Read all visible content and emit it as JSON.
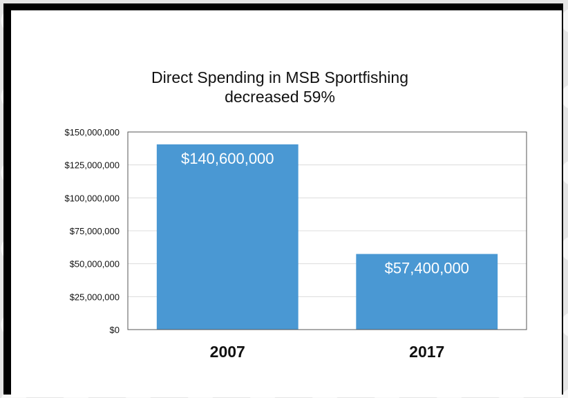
{
  "chart_data": {
    "type": "bar",
    "title": "Direct Spending in MSB Sportfishing\ndecreased 59%",
    "categories": [
      "2007",
      "2017"
    ],
    "values": [
      140600000,
      57400000
    ],
    "data_labels": [
      "$140,600,000",
      "$57,400,000"
    ],
    "ylim": [
      0,
      150000000
    ],
    "yticks": [
      0,
      25000000,
      50000000,
      75000000,
      100000000,
      125000000,
      150000000
    ],
    "ytick_labels": [
      "$0",
      "$25,000,000",
      "$50,000,000",
      "$75,000,000",
      "$100,000,000",
      "$125,000,000",
      "$150,000,000"
    ],
    "grid": true,
    "legend": "none",
    "bar_color": "#4a98d3"
  }
}
